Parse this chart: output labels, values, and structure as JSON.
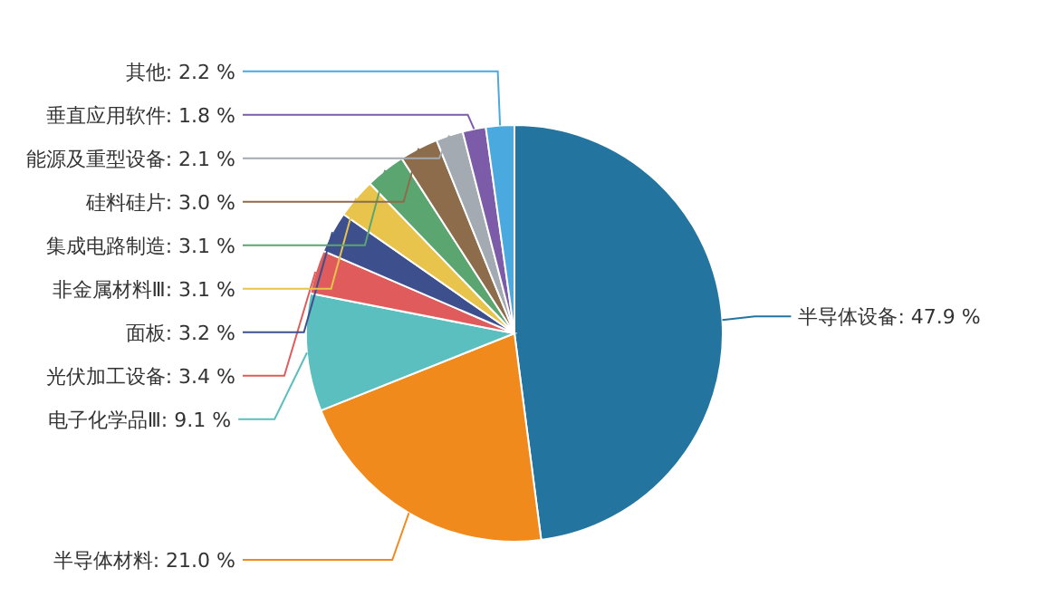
{
  "chart_data": {
    "type": "pie",
    "categories": [
      "半导体设备",
      "半导体材料",
      "电子化学品Ⅲ",
      "光伏加工设备",
      "面板",
      "非金属材料Ⅲ",
      "集成电路制造",
      "硅料硅片",
      "能源及重型设备",
      "垂直应用软件",
      "其他"
    ],
    "values": [
      47.9,
      21.0,
      9.1,
      3.4,
      3.2,
      3.1,
      3.1,
      3.0,
      2.1,
      1.8,
      2.2
    ],
    "value_labels": [
      "47.9 %",
      "21.0 %",
      "9.1 %",
      "3.4 %",
      "3.2 %",
      "3.1 %",
      "3.1 %",
      "3.0 %",
      "2.1 %",
      "1.8 %",
      "2.2 %"
    ],
    "colors": [
      "#23759f",
      "#f18a1c",
      "#5cbfbf",
      "#e05b5b",
      "#3e4f8e",
      "#e8c44c",
      "#5ba570",
      "#8d6c4c",
      "#a3aab2",
      "#7c5ca8",
      "#4aa9df"
    ]
  }
}
